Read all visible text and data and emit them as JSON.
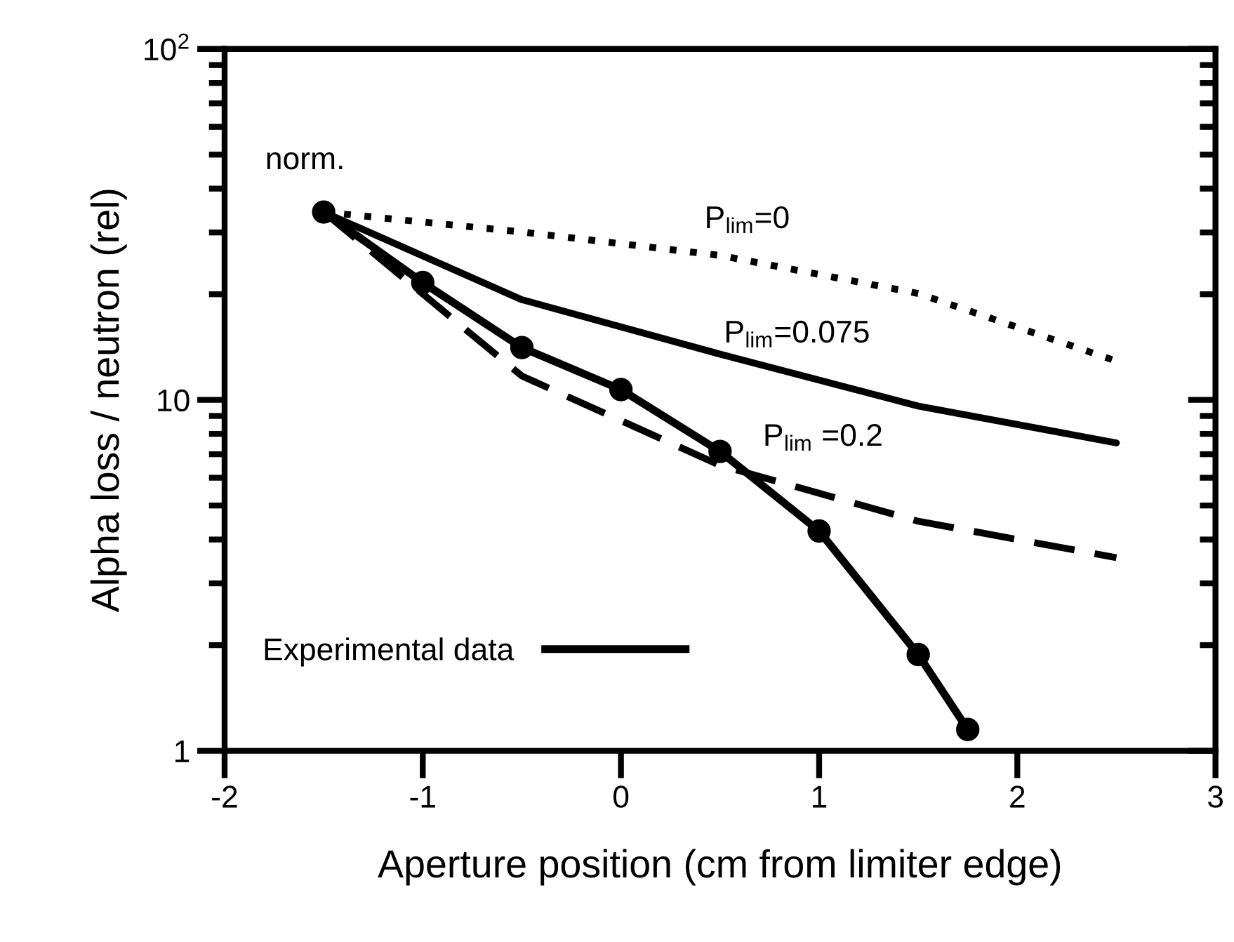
{
  "chart_data": {
    "type": "line",
    "xlabel": "Aperture position (cm from limiter edge)",
    "ylabel": "Alpha loss / neutron (rel)",
    "log": "y",
    "xlim": [
      -2,
      3
    ],
    "xticks": [
      -2,
      -1,
      0,
      1,
      2,
      3
    ],
    "ylim": [
      1,
      100
    ],
    "yticks": [
      1,
      10,
      {
        "value": 100,
        "label": "10$^{2}$"
      }
    ],
    "grid": false,
    "legend": "bottom left",
    "series": [
      {
        "name": "Experimental data",
        "color": "#000000",
        "marker": "circle",
        "line_style": "solid",
        "x": [
          -1.5,
          -1,
          -0.5,
          0,
          0.5,
          1,
          1.5,
          1.75
        ],
        "values": [
          34.3,
          21.6,
          14.1,
          10.7,
          7.13,
          4.23,
          1.88,
          1.15
        ]
      },
      {
        "name": "P$_{lim}$=0",
        "color": "#000000",
        "marker": "none",
        "line_style": "dotted",
        "x": [
          -1.5,
          -0.5,
          0.5,
          1.5,
          2.5
        ],
        "values": [
          34.3,
          30.1,
          25.8,
          20.1,
          12.9
        ]
      },
      {
        "name": "P$_{lim}$=0.075",
        "color": "#000000",
        "marker": "none",
        "line_style": "solid",
        "x": [
          -1.5,
          -0.5,
          0.5,
          1.5,
          2.5
        ],
        "values": [
          34.3,
          19.3,
          13.5,
          9.6,
          7.54
        ]
      },
      {
        "name": "P$_{lim}$ =0.2",
        "color": "#000000",
        "marker": "none",
        "line_style": "dashed",
        "x": [
          -1.5,
          -0.5,
          0.5,
          1.5,
          2.5
        ],
        "values": [
          34.3,
          11.7,
          6.51,
          4.51,
          3.55
        ]
      }
    ],
    "annotations": [
      {
        "text": "norm.",
        "x": -1.5,
        "y": 34.3
      }
    ]
  }
}
